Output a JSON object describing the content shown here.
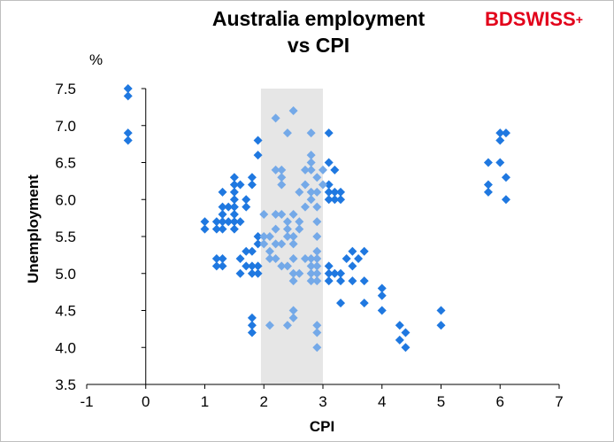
{
  "brand": {
    "bd": "BD",
    "swiss": "SWISS",
    "mark": "+"
  },
  "chart_data": {
    "type": "scatter",
    "title_line1": "Australia employment",
    "title_line2": "vs CPI",
    "xlabel": "CPI",
    "ylabel": "Unemployment",
    "y_unit": "%",
    "xlim": [
      -1,
      7
    ],
    "ylim": [
      3.5,
      7.5
    ],
    "x_ticks": [
      "-1",
      "0",
      "1",
      "2",
      "3",
      "4",
      "5",
      "6",
      "7"
    ],
    "y_ticks": [
      "3.5",
      "4.0",
      "4.5",
      "5.0",
      "5.5",
      "6.0",
      "6.5",
      "7.0",
      "7.5"
    ],
    "highlight_band": {
      "x_from": 1.95,
      "x_to": 3.0,
      "color": "#e6e6e6"
    },
    "grid": false,
    "colors": {
      "dark": "#1f78e0",
      "light": "#74a9e8"
    },
    "series": [
      {
        "color": "#1f78e0",
        "points": [
          [
            -0.3,
            7.5
          ],
          [
            -0.3,
            7.4
          ],
          [
            -0.3,
            6.9
          ],
          [
            -0.3,
            6.8
          ],
          [
            1.0,
            5.7
          ],
          [
            1.0,
            5.6
          ],
          [
            1.2,
            5.7
          ],
          [
            1.2,
            5.6
          ],
          [
            1.3,
            6.1
          ],
          [
            1.3,
            5.9
          ],
          [
            1.3,
            5.8
          ],
          [
            1.3,
            5.7
          ],
          [
            1.3,
            5.6
          ],
          [
            1.4,
            5.9
          ],
          [
            1.4,
            5.7
          ],
          [
            1.5,
            6.3
          ],
          [
            1.5,
            6.2
          ],
          [
            1.5,
            6.1
          ],
          [
            1.5,
            6.0
          ],
          [
            1.5,
            5.9
          ],
          [
            1.5,
            5.8
          ],
          [
            1.5,
            5.7
          ],
          [
            1.5,
            5.6
          ],
          [
            1.6,
            6.2
          ],
          [
            1.6,
            5.7
          ],
          [
            1.7,
            6.0
          ],
          [
            1.7,
            5.9
          ],
          [
            1.8,
            6.3
          ],
          [
            1.8,
            6.2
          ],
          [
            1.2,
            5.2
          ],
          [
            1.2,
            5.1
          ],
          [
            1.3,
            5.2
          ],
          [
            1.3,
            5.1
          ],
          [
            1.6,
            5.2
          ],
          [
            1.6,
            5.0
          ],
          [
            1.7,
            5.3
          ],
          [
            1.7,
            5.1
          ],
          [
            1.8,
            5.3
          ],
          [
            1.8,
            5.1
          ],
          [
            1.8,
            5.0
          ],
          [
            1.9,
            5.5
          ],
          [
            1.9,
            5.4
          ],
          [
            1.9,
            5.1
          ],
          [
            1.9,
            5.0
          ],
          [
            1.9,
            6.8
          ],
          [
            1.9,
            6.6
          ],
          [
            1.8,
            4.4
          ],
          [
            1.8,
            4.3
          ],
          [
            1.8,
            4.2
          ],
          [
            3.1,
            6.9
          ],
          [
            3.1,
            6.5
          ],
          [
            3.2,
            6.4
          ],
          [
            3.1,
            6.2
          ],
          [
            3.1,
            6.1
          ],
          [
            3.1,
            6.0
          ],
          [
            3.2,
            6.1
          ],
          [
            3.2,
            6.0
          ],
          [
            3.3,
            6.1
          ],
          [
            3.3,
            6.0
          ],
          [
            3.1,
            5.1
          ],
          [
            3.1,
            5.0
          ],
          [
            3.1,
            4.9
          ],
          [
            3.2,
            5.0
          ],
          [
            3.3,
            5.0
          ],
          [
            3.3,
            4.9
          ],
          [
            3.3,
            4.6
          ],
          [
            3.4,
            5.2
          ],
          [
            3.5,
            5.3
          ],
          [
            3.5,
            5.1
          ],
          [
            3.5,
            4.9
          ],
          [
            3.6,
            5.2
          ],
          [
            3.7,
            5.3
          ],
          [
            3.7,
            4.9
          ],
          [
            3.7,
            4.6
          ],
          [
            4.0,
            4.8
          ],
          [
            4.0,
            4.7
          ],
          [
            4.0,
            4.5
          ],
          [
            4.3,
            4.3
          ],
          [
            4.3,
            4.1
          ],
          [
            4.4,
            4.2
          ],
          [
            4.4,
            4.0
          ],
          [
            5.0,
            4.5
          ],
          [
            5.0,
            4.3
          ],
          [
            5.8,
            6.5
          ],
          [
            5.8,
            6.2
          ],
          [
            5.8,
            6.1
          ],
          [
            6.0,
            6.9
          ],
          [
            6.0,
            6.8
          ],
          [
            6.0,
            6.5
          ],
          [
            6.1,
            6.9
          ],
          [
            6.1,
            6.3
          ],
          [
            6.1,
            6.0
          ]
        ]
      },
      {
        "color": "#74a9e8",
        "points": [
          [
            2.0,
            5.8
          ],
          [
            2.0,
            5.5
          ],
          [
            2.0,
            5.4
          ],
          [
            2.1,
            5.5
          ],
          [
            2.1,
            5.3
          ],
          [
            2.1,
            5.2
          ],
          [
            2.1,
            4.3
          ],
          [
            2.2,
            7.1
          ],
          [
            2.2,
            6.4
          ],
          [
            2.2,
            5.8
          ],
          [
            2.2,
            5.6
          ],
          [
            2.2,
            5.4
          ],
          [
            2.2,
            5.2
          ],
          [
            2.3,
            6.4
          ],
          [
            2.3,
            6.3
          ],
          [
            2.3,
            6.2
          ],
          [
            2.3,
            5.8
          ],
          [
            2.3,
            5.4
          ],
          [
            2.3,
            5.1
          ],
          [
            2.4,
            5.7
          ],
          [
            2.4,
            5.6
          ],
          [
            2.4,
            5.5
          ],
          [
            2.4,
            5.1
          ],
          [
            2.4,
            6.9
          ],
          [
            2.4,
            4.3
          ],
          [
            2.5,
            7.2
          ],
          [
            2.5,
            5.8
          ],
          [
            2.5,
            5.5
          ],
          [
            2.5,
            5.4
          ],
          [
            2.5,
            5.2
          ],
          [
            2.5,
            5.0
          ],
          [
            2.5,
            4.9
          ],
          [
            2.5,
            4.5
          ],
          [
            2.5,
            4.4
          ],
          [
            2.6,
            6.1
          ],
          [
            2.6,
            5.7
          ],
          [
            2.6,
            5.6
          ],
          [
            2.6,
            5.0
          ],
          [
            2.7,
            6.4
          ],
          [
            2.7,
            6.2
          ],
          [
            2.7,
            5.9
          ],
          [
            2.7,
            5.2
          ],
          [
            2.8,
            6.9
          ],
          [
            2.8,
            6.6
          ],
          [
            2.8,
            6.5
          ],
          [
            2.8,
            6.4
          ],
          [
            2.8,
            6.1
          ],
          [
            2.8,
            6.0
          ],
          [
            2.8,
            5.2
          ],
          [
            2.8,
            5.1
          ],
          [
            2.8,
            5.0
          ],
          [
            2.8,
            4.9
          ],
          [
            2.9,
            6.3
          ],
          [
            2.9,
            6.1
          ],
          [
            2.9,
            5.9
          ],
          [
            2.9,
            5.7
          ],
          [
            2.9,
            5.5
          ],
          [
            2.9,
            5.3
          ],
          [
            2.9,
            5.2
          ],
          [
            2.9,
            5.1
          ],
          [
            2.9,
            5.0
          ],
          [
            2.9,
            4.9
          ],
          [
            2.9,
            4.3
          ],
          [
            2.9,
            4.2
          ],
          [
            2.9,
            4.0
          ],
          [
            3.0,
            6.4
          ],
          [
            3.0,
            6.2
          ]
        ]
      }
    ]
  }
}
